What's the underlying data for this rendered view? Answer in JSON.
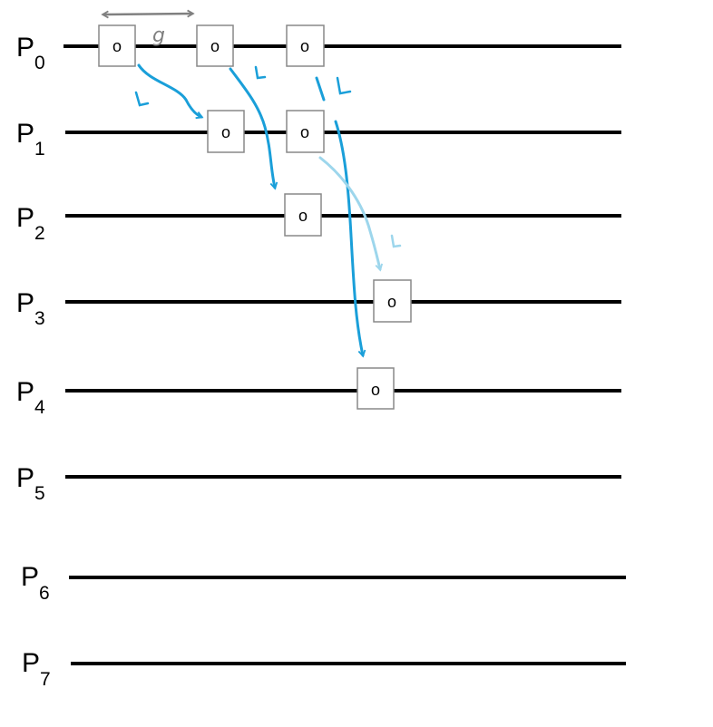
{
  "processors": [
    {
      "prefix": "P",
      "index": "0"
    },
    {
      "prefix": "P",
      "index": "1"
    },
    {
      "prefix": "P",
      "index": "2"
    },
    {
      "prefix": "P",
      "index": "3"
    },
    {
      "prefix": "P",
      "index": "4"
    },
    {
      "prefix": "P",
      "index": "5"
    },
    {
      "prefix": "P",
      "index": "6"
    },
    {
      "prefix": "P",
      "index": "7"
    }
  ],
  "operation_label": "o",
  "operations": [
    {
      "processor": 0,
      "slot": 1,
      "label": "o"
    },
    {
      "processor": 0,
      "slot": 2,
      "label": "o"
    },
    {
      "processor": 0,
      "slot": 3,
      "label": "o"
    },
    {
      "processor": 1,
      "slot": 2,
      "label": "o"
    },
    {
      "processor": 1,
      "slot": 3,
      "label": "o"
    },
    {
      "processor": 2,
      "slot": 3,
      "label": "o"
    },
    {
      "processor": 3,
      "slot": 4,
      "label": "o"
    },
    {
      "processor": 4,
      "slot": 4,
      "label": "o"
    }
  ],
  "gap_annotation": {
    "label": "g",
    "color": "#808080"
  },
  "latency_label": "L",
  "messages": [
    {
      "from_processor": 0,
      "to_processor": 1,
      "label": "L",
      "color": "#1a9fd9"
    },
    {
      "from_processor": 0,
      "to_processor": 2,
      "label": "L",
      "color": "#1a9fd9"
    },
    {
      "from_processor": 0,
      "to_processor": 4,
      "label": "L",
      "color": "#1a9fd9"
    },
    {
      "from_processor": 1,
      "to_processor": 3,
      "label": "L",
      "color": "#9dd6ec"
    }
  ],
  "colors": {
    "line": "#000000",
    "message": "#1a9fd9",
    "message_faded": "#9dd6ec",
    "gap": "#808080",
    "box_border": "#888888"
  }
}
